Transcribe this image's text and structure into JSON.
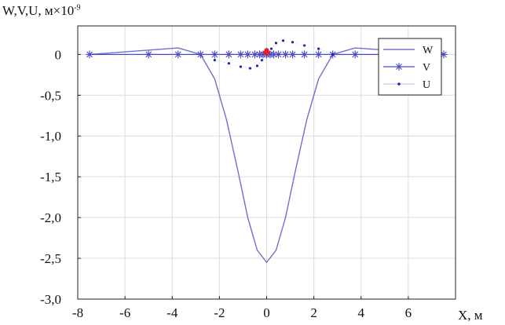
{
  "chart_data": {
    "type": "line",
    "ylabel_main": "W,V,U, м×10",
    "ylabel_exp": "-9",
    "xlabel": "X, м",
    "xlim": [
      -8,
      8
    ],
    "ylim": [
      -3.0,
      0.35
    ],
    "xticks": [
      -8,
      -6,
      -4,
      -2,
      0,
      2,
      4,
      6
    ],
    "xtick_labels": [
      "-8",
      "-6",
      "-4",
      "-2",
      "0",
      "2",
      "4",
      "6"
    ],
    "yticks": [
      0,
      -0.5,
      -1.0,
      -1.5,
      -2.0,
      -2.5,
      -3.0
    ],
    "ytick_labels": [
      "0",
      "-0,5",
      "-1,0",
      "-1,5",
      "-2,0",
      "-2,5",
      "-3,0"
    ],
    "grid": true,
    "legend_position": "top-right",
    "colors": {
      "W": "#7070cc",
      "V": "#4a4ac8",
      "U": "#1e2a9c",
      "marker_red": "#e0202a",
      "grid": "#dcdcdc"
    },
    "series": [
      {
        "name": "W",
        "style": "line",
        "x": [
          -7.5,
          -3.75,
          -2.8,
          -2.2,
          -1.7,
          -1.2,
          -0.8,
          -0.4,
          0.0,
          0.4,
          0.8,
          1.2,
          1.7,
          2.2,
          2.8,
          3.75,
          7.5
        ],
        "y": [
          0.0,
          0.08,
          0.0,
          -0.3,
          -0.8,
          -1.45,
          -2.0,
          -2.4,
          -2.55,
          -2.4,
          -2.0,
          -1.45,
          -0.8,
          -0.3,
          0.0,
          0.08,
          0.0
        ]
      },
      {
        "name": "V",
        "style": "line-star",
        "x": [
          -7.5,
          -5.0,
          -3.75,
          -2.8,
          -2.2,
          -1.6,
          -1.1,
          -0.8,
          -0.5,
          -0.3,
          -0.15,
          0.0,
          0.15,
          0.3,
          0.5,
          0.8,
          1.1,
          1.6,
          2.2,
          2.8,
          3.75,
          5.0,
          7.5
        ],
        "y": [
          0,
          0,
          0,
          0,
          0,
          0,
          0,
          0,
          0,
          0,
          0,
          0,
          0,
          0,
          0,
          0,
          0,
          0,
          0,
          0,
          0,
          0,
          0
        ]
      },
      {
        "name": "U",
        "style": "dotted",
        "x": [
          -2.2,
          -1.6,
          -1.1,
          -0.7,
          -0.4,
          -0.2,
          0.0,
          0.2,
          0.4,
          0.7,
          1.1,
          1.6,
          2.2,
          2.8
        ],
        "y": [
          -0.07,
          -0.11,
          -0.15,
          -0.17,
          -0.14,
          -0.07,
          0.0,
          0.07,
          0.14,
          0.17,
          0.15,
          0.11,
          0.07,
          0.0
        ]
      }
    ],
    "legend": [
      {
        "label": "W",
        "series": "W"
      },
      {
        "label": "V",
        "series": "V"
      },
      {
        "label": "U",
        "series": "U"
      }
    ]
  }
}
